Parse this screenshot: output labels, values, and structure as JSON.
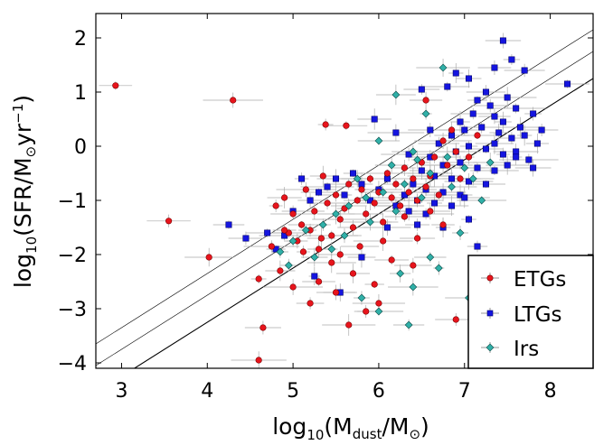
{
  "chart_data": {
    "type": "scatter",
    "title": "",
    "xlabel": {
      "prefix": "log",
      "base": "10",
      "open": "(M",
      "sub": "dust",
      "mid": "/M",
      "sun": "⊙",
      "close": ")"
    },
    "ylabel": {
      "prefix": "log",
      "base": "10",
      "open": "(SFR/M",
      "sun": "⊙",
      "mid": "yr",
      "exp": "−1",
      "close": ")"
    },
    "xlim": [
      2.7,
      8.5
    ],
    "ylim": [
      -4.1,
      2.45
    ],
    "x_ticks": [
      3,
      4,
      5,
      6,
      7,
      8
    ],
    "y_ticks": [
      -4,
      -3,
      -2,
      -1,
      0,
      1,
      2
    ],
    "x_tick_labels": [
      "3",
      "4",
      "5",
      "6",
      "7",
      "8"
    ],
    "y_tick_labels": [
      "−4",
      "−3",
      "−2",
      "−1",
      "0",
      "1",
      "2"
    ],
    "legend_position": "bottom-right",
    "reference_lines": [
      {
        "slope": 1.0,
        "intercept": -7.25
      },
      {
        "slope": 1.0,
        "intercept": -6.75
      },
      {
        "slope": 1.0,
        "intercept": -6.35
      }
    ],
    "series": [
      {
        "name": "ETGs",
        "marker": "circle",
        "color": "#e8141c",
        "edge": "#7a0000",
        "points": [
          [
            2.93,
            1.12
          ],
          [
            4.3,
            0.85
          ],
          [
            3.55,
            -1.38
          ],
          [
            4.02,
            -2.05
          ],
          [
            4.65,
            -3.35
          ],
          [
            4.6,
            -3.95
          ],
          [
            4.8,
            -1.1
          ],
          [
            4.9,
            -0.95
          ],
          [
            4.95,
            -1.6
          ],
          [
            5.0,
            -1.25
          ],
          [
            5.05,
            -1.75
          ],
          [
            5.1,
            -1.45
          ],
          [
            5.15,
            -0.8
          ],
          [
            5.2,
            -1.55
          ],
          [
            5.25,
            -1.2
          ],
          [
            5.3,
            -1.9
          ],
          [
            5.35,
            -0.55
          ],
          [
            5.4,
            -1.05
          ],
          [
            5.45,
            -1.65
          ],
          [
            5.5,
            -0.9
          ],
          [
            5.55,
            -1.35
          ],
          [
            5.6,
            -1.15
          ],
          [
            5.65,
            -0.7
          ],
          [
            5.7,
            -1.5
          ],
          [
            5.75,
            -1.0
          ],
          [
            5.8,
            -0.8
          ],
          [
            5.85,
            -1.25
          ],
          [
            5.9,
            -0.6
          ],
          [
            5.95,
            -1.05
          ],
          [
            6.0,
            -0.85
          ],
          [
            6.05,
            -1.4
          ],
          [
            6.1,
            -0.5
          ],
          [
            6.15,
            -0.95
          ],
          [
            6.2,
            -0.7
          ],
          [
            6.25,
            -1.1
          ],
          [
            6.3,
            -0.4
          ],
          [
            6.35,
            -0.85
          ],
          [
            6.4,
            -0.6
          ],
          [
            6.45,
            -1.0
          ],
          [
            6.5,
            -0.3
          ],
          [
            6.55,
            -0.75
          ],
          [
            6.6,
            -0.55
          ],
          [
            6.65,
            -0.2
          ],
          [
            6.7,
            -0.9
          ],
          [
            6.75,
            0.1
          ],
          [
            6.8,
            -0.35
          ],
          [
            6.85,
            0.3
          ],
          [
            6.9,
            -0.1
          ],
          [
            5.0,
            -2.6
          ],
          [
            5.2,
            -2.9
          ],
          [
            5.5,
            -2.7
          ],
          [
            5.85,
            -3.05
          ],
          [
            6.0,
            -2.9
          ],
          [
            6.4,
            -2.2
          ],
          [
            6.9,
            -3.2
          ],
          [
            4.6,
            -2.45
          ],
          [
            4.85,
            -2.3
          ],
          [
            5.45,
            -2.15
          ],
          [
            5.7,
            -2.35
          ],
          [
            5.3,
            -2.5
          ],
          [
            4.75,
            -1.85
          ],
          [
            4.9,
            -1.55
          ],
          [
            5.12,
            -1.95
          ],
          [
            5.33,
            -1.7
          ],
          [
            5.55,
            -2.0
          ],
          [
            5.78,
            -1.85
          ],
          [
            6.15,
            -2.1
          ],
          [
            6.45,
            -1.7
          ],
          [
            6.75,
            -1.45
          ],
          [
            6.3,
            -1.3
          ],
          [
            6.6,
            -1.2
          ],
          [
            6.95,
            -0.6
          ],
          [
            7.05,
            -0.2
          ],
          [
            7.15,
            0.2
          ],
          [
            5.62,
            0.38
          ],
          [
            5.38,
            0.4
          ],
          [
            6.55,
            0.85
          ],
          [
            6.05,
            -1.75
          ],
          [
            5.95,
            -2.55
          ],
          [
            5.65,
            -3.3
          ]
        ]
      },
      {
        "name": "LTGs",
        "marker": "square",
        "color": "#1515e0",
        "edge": "#00006a",
        "points": [
          [
            7.45,
            1.95
          ],
          [
            7.55,
            1.6
          ],
          [
            7.35,
            1.45
          ],
          [
            6.9,
            1.35
          ],
          [
            7.7,
            1.4
          ],
          [
            7.05,
            1.25
          ],
          [
            8.2,
            1.15
          ],
          [
            6.5,
            1.05
          ],
          [
            6.8,
            1.1
          ],
          [
            7.25,
            1.0
          ],
          [
            7.15,
            0.85
          ],
          [
            7.5,
            0.9
          ],
          [
            7.8,
            0.6
          ],
          [
            7.6,
            0.7
          ],
          [
            7.35,
            0.55
          ],
          [
            7.1,
            0.6
          ],
          [
            6.95,
            0.45
          ],
          [
            7.0,
            0.3
          ],
          [
            7.2,
            0.35
          ],
          [
            7.4,
            0.25
          ],
          [
            7.55,
            0.15
          ],
          [
            7.7,
            0.2
          ],
          [
            7.85,
            0.05
          ],
          [
            6.85,
            0.2
          ],
          [
            6.7,
            0.05
          ],
          [
            6.9,
            -0.1
          ],
          [
            7.05,
            0.0
          ],
          [
            7.25,
            -0.05
          ],
          [
            7.45,
            -0.15
          ],
          [
            7.6,
            -0.1
          ],
          [
            7.75,
            -0.25
          ],
          [
            6.6,
            -0.2
          ],
          [
            6.75,
            -0.35
          ],
          [
            6.95,
            -0.3
          ],
          [
            7.15,
            -0.4
          ],
          [
            7.35,
            -0.45
          ],
          [
            6.5,
            -0.45
          ],
          [
            6.65,
            -0.55
          ],
          [
            6.85,
            -0.6
          ],
          [
            7.05,
            -0.65
          ],
          [
            7.25,
            -0.7
          ],
          [
            6.4,
            -0.7
          ],
          [
            6.55,
            -0.8
          ],
          [
            6.75,
            -0.85
          ],
          [
            6.95,
            -0.9
          ],
          [
            6.3,
            -0.9
          ],
          [
            6.45,
            -1.0
          ],
          [
            6.65,
            -1.05
          ],
          [
            6.85,
            -1.1
          ],
          [
            6.2,
            -1.1
          ],
          [
            6.35,
            -1.2
          ],
          [
            6.55,
            -1.25
          ],
          [
            6.1,
            -0.6
          ],
          [
            6.0,
            -0.8
          ],
          [
            5.9,
            -1.0
          ],
          [
            5.8,
            -0.7
          ],
          [
            5.7,
            -0.5
          ],
          [
            5.6,
            -0.9
          ],
          [
            5.5,
            -0.6
          ],
          [
            5.4,
            -0.75
          ],
          [
            5.3,
            -0.85
          ],
          [
            5.2,
            -1.0
          ],
          [
            5.1,
            -0.6
          ],
          [
            5.0,
            -1.2
          ],
          [
            4.9,
            -1.65
          ],
          [
            4.8,
            -1.9
          ],
          [
            4.7,
            -1.6
          ],
          [
            4.25,
            -1.45
          ],
          [
            4.45,
            -1.7
          ],
          [
            5.25,
            -2.4
          ],
          [
            5.55,
            -2.7
          ],
          [
            5.8,
            -2.05
          ],
          [
            6.1,
            -1.5
          ],
          [
            6.45,
            -1.45
          ],
          [
            6.75,
            -1.5
          ],
          [
            7.05,
            -1.35
          ],
          [
            7.15,
            -1.85
          ],
          [
            7.6,
            -0.2
          ],
          [
            7.9,
            0.3
          ],
          [
            7.65,
            0.35
          ],
          [
            7.3,
            0.75
          ],
          [
            7.45,
            0.45
          ],
          [
            6.6,
            0.3
          ],
          [
            6.2,
            0.25
          ],
          [
            5.95,
            0.5
          ],
          [
            6.35,
            -0.15
          ],
          [
            7.8,
            -0.4
          ],
          [
            7.0,
            -0.95
          ],
          [
            7.35,
            0.05
          ],
          [
            7.5,
            -0.35
          ]
        ]
      },
      {
        "name": "Irs",
        "marker": "diamond",
        "color": "#30b0a8",
        "edge": "#0a4a46",
        "points": [
          [
            6.75,
            1.45
          ],
          [
            6.2,
            0.95
          ],
          [
            6.55,
            0.6
          ],
          [
            6.0,
            0.1
          ],
          [
            6.4,
            -0.1
          ],
          [
            6.8,
            -0.2
          ],
          [
            7.0,
            -0.4
          ],
          [
            6.6,
            -0.5
          ],
          [
            6.3,
            -0.7
          ],
          [
            6.05,
            -0.85
          ],
          [
            5.85,
            -0.95
          ],
          [
            5.65,
            -1.1
          ],
          [
            5.5,
            -1.25
          ],
          [
            5.35,
            -1.45
          ],
          [
            5.15,
            -1.55
          ],
          [
            5.0,
            -1.75
          ],
          [
            4.85,
            -1.95
          ],
          [
            4.95,
            -2.2
          ],
          [
            5.25,
            -2.05
          ],
          [
            5.6,
            -1.65
          ],
          [
            5.9,
            -1.4
          ],
          [
            6.2,
            -1.2
          ],
          [
            6.5,
            -0.95
          ],
          [
            6.85,
            -0.75
          ],
          [
            7.1,
            -0.6
          ],
          [
            7.3,
            -0.3
          ],
          [
            6.95,
            -1.6
          ],
          [
            6.6,
            -2.05
          ],
          [
            6.4,
            -2.6
          ],
          [
            6.25,
            -2.35
          ],
          [
            5.8,
            -2.8
          ],
          [
            6.0,
            -3.05
          ],
          [
            6.35,
            -3.3
          ],
          [
            6.7,
            -2.25
          ],
          [
            7.05,
            -2.8
          ],
          [
            5.45,
            -1.9
          ],
          [
            6.15,
            -0.35
          ],
          [
            6.45,
            -0.25
          ],
          [
            5.75,
            -0.6
          ],
          [
            7.2,
            -1.0
          ]
        ]
      }
    ]
  }
}
